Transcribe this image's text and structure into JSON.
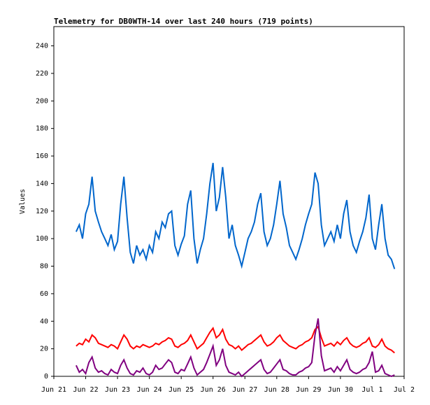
{
  "chart_data": {
    "type": "line",
    "title": "Telemetry for DB0WTH-14 over last 240 hours (719 points)",
    "y_label": "Values",
    "xlim": [
      0,
      11
    ],
    "xticks": [
      {
        "value": 0,
        "label": "Jun 21"
      },
      {
        "value": 1,
        "label": "Jun 22"
      },
      {
        "value": 2,
        "label": "Jun 23"
      },
      {
        "value": 3,
        "label": "Jun 24"
      },
      {
        "value": 4,
        "label": "Jun 25"
      },
      {
        "value": 5,
        "label": "Jun 26"
      },
      {
        "value": 6,
        "label": "Jun 27"
      },
      {
        "value": 7,
        "label": "Jun 28"
      },
      {
        "value": 8,
        "label": "Jun 29"
      },
      {
        "value": 9,
        "label": "Jun 30"
      },
      {
        "value": 10,
        "label": "Jul 1"
      },
      {
        "value": 11,
        "label": "Jul 2"
      }
    ],
    "ylim": [
      0,
      254
    ],
    "yticks": [
      0,
      20,
      40,
      60,
      80,
      100,
      120,
      140,
      160,
      180,
      200,
      220,
      240
    ],
    "grid": false,
    "x": [
      0.7,
      0.8,
      0.9,
      1.0,
      1.1,
      1.2,
      1.3,
      1.4,
      1.5,
      1.6,
      1.7,
      1.8,
      1.9,
      2.0,
      2.1,
      2.2,
      2.3,
      2.4,
      2.5,
      2.6,
      2.7,
      2.8,
      2.9,
      3.0,
      3.1,
      3.2,
      3.3,
      3.4,
      3.5,
      3.6,
      3.7,
      3.8,
      3.9,
      4.0,
      4.1,
      4.2,
      4.3,
      4.4,
      4.5,
      4.6,
      4.7,
      4.8,
      4.9,
      5.0,
      5.1,
      5.2,
      5.3,
      5.4,
      5.5,
      5.6,
      5.7,
      5.8,
      5.9,
      6.0,
      6.1,
      6.2,
      6.3,
      6.4,
      6.5,
      6.6,
      6.7,
      6.8,
      6.9,
      7.0,
      7.1,
      7.2,
      7.3,
      7.4,
      7.5,
      7.6,
      7.7,
      7.8,
      7.9,
      8.0,
      8.1,
      8.2,
      8.3,
      8.4,
      8.5,
      8.6,
      8.7,
      8.8,
      8.9,
      9.0,
      9.1,
      9.2,
      9.3,
      9.4,
      9.5,
      9.6,
      9.7,
      9.8,
      9.9,
      10.0,
      10.1,
      10.2,
      10.3,
      10.4,
      10.5,
      10.6,
      10.7
    ],
    "series": [
      {
        "color": "#0066cc",
        "values": [
          105,
          110,
          100,
          118,
          125,
          145,
          120,
          112,
          105,
          100,
          95,
          103,
          92,
          98,
          125,
          145,
          115,
          90,
          82,
          95,
          88,
          92,
          85,
          95,
          90,
          105,
          100,
          112,
          108,
          118,
          120,
          95,
          88,
          96,
          102,
          125,
          135,
          100,
          82,
          92,
          100,
          118,
          140,
          155,
          120,
          130,
          152,
          130,
          100,
          110,
          95,
          88,
          80,
          90,
          100,
          105,
          112,
          125,
          133,
          105,
          95,
          100,
          110,
          125,
          142,
          118,
          108,
          95,
          90,
          85,
          92,
          100,
          110,
          118,
          125,
          148,
          140,
          110,
          95,
          100,
          105,
          98,
          110,
          100,
          118,
          128,
          105,
          95,
          90,
          98,
          105,
          115,
          132,
          100,
          92,
          110,
          125,
          100,
          88,
          85,
          78
        ]
      },
      {
        "color": "#ff0000",
        "values": [
          22,
          24,
          23,
          27,
          25,
          30,
          28,
          24,
          23,
          22,
          21,
          23,
          22,
          20,
          25,
          30,
          27,
          22,
          20,
          22,
          21,
          23,
          22,
          21,
          22,
          24,
          23,
          25,
          26,
          28,
          27,
          22,
          21,
          23,
          24,
          26,
          30,
          25,
          20,
          22,
          24,
          28,
          32,
          35,
          28,
          30,
          34,
          27,
          23,
          22,
          20,
          22,
          19,
          21,
          23,
          24,
          26,
          28,
          30,
          25,
          22,
          23,
          25,
          28,
          30,
          26,
          24,
          22,
          21,
          20,
          22,
          23,
          25,
          26,
          28,
          34,
          36,
          28,
          22,
          23,
          24,
          22,
          25,
          23,
          26,
          28,
          24,
          22,
          21,
          22,
          24,
          25,
          28,
          22,
          21,
          23,
          27,
          22,
          20,
          19,
          17
        ]
      },
      {
        "color": "#800080",
        "values": [
          8,
          3,
          5,
          2,
          10,
          14,
          6,
          3,
          4,
          2,
          1,
          5,
          3,
          2,
          8,
          12,
          6,
          2,
          1,
          4,
          3,
          6,
          2,
          1,
          3,
          8,
          5,
          6,
          9,
          12,
          10,
          3,
          2,
          5,
          4,
          9,
          14,
          6,
          1,
          3,
          5,
          10,
          16,
          22,
          8,
          12,
          20,
          8,
          3,
          2,
          1,
          3,
          0,
          2,
          4,
          6,
          8,
          10,
          12,
          5,
          2,
          3,
          6,
          9,
          12,
          5,
          4,
          2,
          1,
          1,
          3,
          4,
          6,
          7,
          10,
          30,
          42,
          15,
          4,
          5,
          6,
          3,
          7,
          4,
          8,
          12,
          5,
          3,
          2,
          3,
          5,
          6,
          10,
          18,
          3,
          4,
          8,
          2,
          1,
          0,
          1
        ]
      }
    ]
  }
}
